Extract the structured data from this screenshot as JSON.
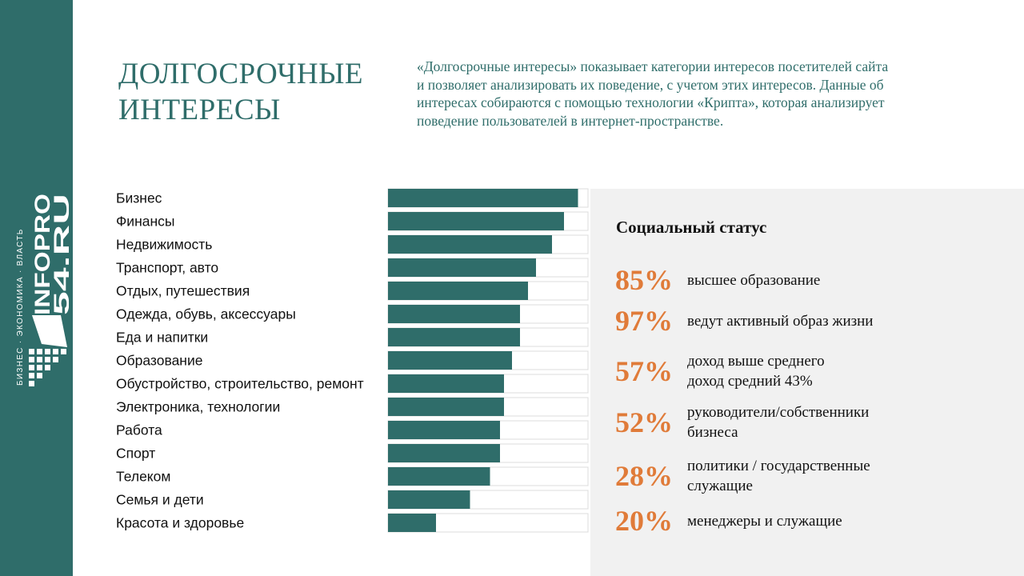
{
  "sidebar": {
    "logo_text_1": "INFOPRO",
    "logo_text_2": "54.RU",
    "tagline": "БИЗНЕС · ЭКОНОМИКА · ВЛАСТЬ",
    "color": "#2f6d6a"
  },
  "header": {
    "title_line1": "ДОЛГОСРОЧНЫЕ",
    "title_line2": "ИНТЕРЕСЫ",
    "description": "«Долгосрочные интересы» показывает категории интересов посетителей сайта и позволяет анализировать их поведение, с учетом этих интересов. Данные об интересах собираются с помощью технологии «Крипта», которая анализирует поведение пользователей в интернет-пространстве."
  },
  "chart_data": {
    "type": "bar",
    "orientation": "horizontal",
    "title": "",
    "xlabel": "",
    "ylabel": "",
    "xlim": [
      0,
      100
    ],
    "categories": [
      "Бизнес",
      "Финансы",
      "Недвижимость",
      "Транспорт, авто",
      "Отдых, путешествия",
      "Одежда, обувь, аксессуары",
      "Еда и напитки",
      "Образование",
      "Обустройство, строительство, ремонт",
      "Электроника, технологии",
      "Работа",
      "Спорт",
      "Телеком",
      "Семья и дети",
      "Красота и здоровье"
    ],
    "values": [
      95,
      88,
      82,
      74,
      70,
      66,
      66,
      62,
      58,
      58,
      56,
      56,
      51,
      41,
      24
    ],
    "bar_color": "#2f6d6a",
    "track_color": "#ffffff"
  },
  "social_status": {
    "title": "Социальный статус",
    "accent_color": "#e07b39",
    "items": [
      {
        "value": "85%",
        "line1": "высшее образование",
        "line2": ""
      },
      {
        "value": "97%",
        "line1": "ведут активный образ жизни",
        "line2": ""
      },
      {
        "value": "57%",
        "line1": "доход выше среднего",
        "line2": "доход средний 43%"
      },
      {
        "value": "52%",
        "line1": "руководители/собственники",
        "line2": "бизнеса"
      },
      {
        "value": "28%",
        "line1": "политики / государственные",
        "line2": "служащие"
      },
      {
        "value": "20%",
        "line1": "менеджеры и служащие",
        "line2": ""
      }
    ]
  }
}
